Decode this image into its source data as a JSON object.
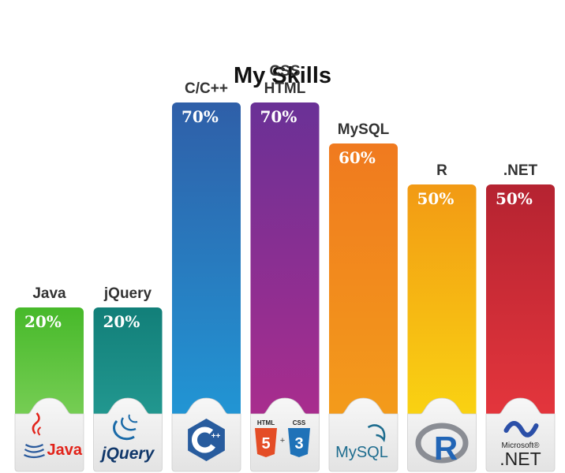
{
  "chart_data": {
    "type": "bar",
    "title": "My Skills",
    "xlabel": "",
    "ylabel": "",
    "ylim": [
      0,
      100
    ],
    "grid": false,
    "categories": [
      "Java",
      "jQuery",
      "C/C++",
      "CSS HTML",
      "MySQL",
      "R",
      ".NET"
    ],
    "category_lines": [
      [
        "Java"
      ],
      [
        "jQuery"
      ],
      [
        "C/C++"
      ],
      [
        "CSS",
        "HTML"
      ],
      [
        "MySQL"
      ],
      [
        "R"
      ],
      [
        ".NET"
      ]
    ],
    "values": [
      20,
      20,
      70,
      70,
      60,
      50,
      50
    ],
    "data_labels": [
      "20%",
      "20%",
      "70%",
      "70%",
      "60%",
      "50%",
      "50%"
    ],
    "colors": [
      [
        "#47b92a",
        "#8fd86a"
      ],
      [
        "#127f79",
        "#2aa49b"
      ],
      [
        "#2f5fa8",
        "#1f9fdc"
      ],
      [
        "#6a3196",
        "#b42c8c"
      ],
      [
        "#f07a1f",
        "#f4a21a"
      ],
      [
        "#f29a14",
        "#fbe012"
      ],
      [
        "#b52331",
        "#ef3a3f"
      ]
    ],
    "logos": [
      {
        "name": "java-logo",
        "text": "Java"
      },
      {
        "name": "jquery-logo",
        "text": "jQuery"
      },
      {
        "name": "cpp-logo",
        "text": "C++"
      },
      {
        "name": "html5-css3-logo",
        "text": [
          "HTML",
          "CSS",
          "5",
          "3",
          "+"
        ]
      },
      {
        "name": "mysql-logo",
        "text": "MySQL"
      },
      {
        "name": "r-logo",
        "text": "R"
      },
      {
        "name": "dotnet-logo",
        "text": [
          "Microsoft®",
          ".NET"
        ]
      }
    ]
  }
}
